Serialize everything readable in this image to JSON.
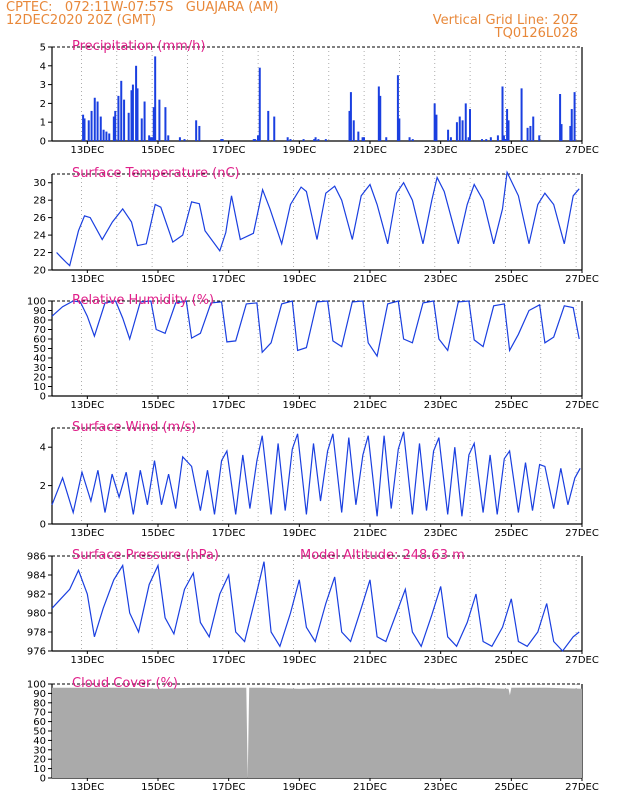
{
  "header": {
    "line1": "CPTEC:   072:11W-07:57S   GUAJARA (AM)",
    "line2_left": "12DEC2020 20Z (GMT)",
    "line2_right": "Vertical Grid Line: 20Z",
    "line3_right": "TQ0126L028"
  },
  "colors": {
    "header": "#e8883a",
    "title": "#e0208a",
    "line": "#1a3fe0",
    "cloud": "#aaaaaa",
    "grid": "#999999"
  },
  "x_tick_labels": [
    "13DEC",
    "15DEC",
    "17DEC",
    "19DEC",
    "21DEC",
    "23DEC",
    "25DEC",
    "27DEC"
  ],
  "chart_data": [
    {
      "type": "bar",
      "title": "Precipitation (mm/h)",
      "ylim": [
        0,
        5
      ],
      "yticks": [
        0,
        1,
        2,
        3,
        4,
        5
      ],
      "x": [
        12.88,
        12.92,
        13.04,
        13.12,
        13.21,
        13.29,
        13.38,
        13.46,
        13.54,
        13.62,
        13.75,
        13.79,
        13.88,
        13.96,
        14.04,
        14.17,
        14.25,
        14.29,
        14.38,
        14.42,
        14.54,
        14.62,
        14.75,
        14.79,
        14.83,
        14.88,
        14.92,
        15.04,
        15.21,
        15.29,
        15.62,
        15.75,
        16.08,
        16.17,
        16.79,
        16.83,
        17.71,
        17.75,
        17.83,
        17.88,
        18.12,
        18.29,
        18.67,
        18.75,
        19.12,
        19.42,
        19.46,
        19.54,
        19.75,
        20.42,
        20.46,
        20.54,
        20.67,
        20.79,
        20.83,
        21.25,
        21.29,
        21.46,
        21.79,
        21.83,
        22.12,
        22.21,
        22.83,
        22.88,
        23.21,
        23.29,
        23.46,
        23.54,
        23.62,
        23.71,
        23.79,
        23.83,
        24.17,
        24.29,
        24.42,
        24.62,
        24.75,
        24.79,
        24.83,
        24.88,
        24.92,
        25.29,
        25.46,
        25.54,
        25.62,
        25.79,
        26.38,
        26.42,
        26.67,
        26.71,
        26.79
      ],
      "values": [
        1.4,
        1.2,
        1.1,
        1.6,
        2.3,
        2.1,
        1.3,
        0.6,
        0.5,
        0.4,
        1.3,
        1.6,
        2.4,
        3.2,
        2.2,
        1.5,
        2.7,
        3.0,
        4.0,
        2.8,
        1.2,
        2.1,
        0.3,
        0.2,
        0.2,
        1.8,
        4.5,
        2.2,
        1.8,
        0.3,
        0.2,
        0.1,
        1.1,
        0.8,
        0.1,
        0.1,
        0.1,
        0.1,
        0.3,
        3.9,
        1.6,
        1.3,
        0.2,
        0.1,
        0.1,
        0.1,
        0.2,
        0.1,
        0.1,
        1.6,
        2.6,
        1.1,
        0.5,
        0.2,
        0.2,
        2.9,
        2.4,
        0.2,
        3.5,
        1.2,
        0.2,
        0.1,
        2.0,
        1.4,
        0.6,
        0.2,
        1.0,
        1.3,
        1.1,
        2.0,
        0.2,
        1.7,
        0.1,
        0.1,
        0.2,
        0.3,
        2.9,
        0.3,
        0.1,
        1.7,
        1.1,
        2.8,
        0.7,
        0.8,
        1.3,
        0.3,
        2.5,
        0.9,
        0.8,
        1.7,
        2.6
      ]
    },
    {
      "type": "line",
      "title": "Surface Temperature (nC)",
      "ylim": [
        20,
        31
      ],
      "yticks": [
        20,
        22,
        24,
        26,
        28,
        30
      ],
      "x": [
        12.13,
        12.25,
        12.42,
        12.5,
        12.75,
        12.92,
        13.08,
        13.42,
        13.71,
        14.0,
        14.25,
        14.42,
        14.67,
        14.92,
        15.08,
        15.42,
        15.7,
        15.95,
        16.17,
        16.33,
        16.75,
        16.92,
        17.08,
        17.33,
        17.7,
        17.96,
        18.17,
        18.5,
        18.75,
        19.05,
        19.2,
        19.5,
        19.75,
        20.0,
        20.2,
        20.5,
        20.75,
        21.0,
        21.2,
        21.5,
        21.75,
        21.95,
        22.2,
        22.5,
        22.75,
        22.9,
        23.1,
        23.5,
        23.75,
        23.95,
        24.2,
        24.5,
        24.75,
        24.88,
        25.2,
        25.5,
        25.75,
        25.95,
        26.2,
        26.5,
        26.75,
        26.92
      ],
      "y": [
        22.0,
        21.5,
        20.8,
        20.5,
        24.5,
        26.2,
        26.0,
        23.5,
        25.5,
        27.0,
        25.5,
        22.8,
        23.0,
        27.5,
        27.2,
        23.2,
        24.0,
        27.8,
        27.6,
        24.5,
        22.2,
        24.3,
        28.5,
        23.5,
        24.2,
        29.2,
        27.0,
        23.0,
        27.5,
        29.5,
        29.0,
        23.5,
        28.8,
        29.6,
        28.0,
        23.5,
        28.5,
        29.8,
        27.5,
        23.0,
        28.8,
        30.0,
        28.0,
        23.0,
        28.0,
        30.6,
        29.0,
        23.0,
        27.5,
        29.8,
        28.0,
        23.0,
        27.0,
        31.2,
        28.5,
        23.0,
        27.5,
        28.8,
        27.5,
        23.0,
        28.5,
        29.3
      ]
    },
    {
      "type": "line",
      "title": "Relative Humidity (%)",
      "ylim": [
        0,
        100
      ],
      "yticks": [
        0,
        10,
        20,
        30,
        40,
        50,
        60,
        70,
        80,
        90,
        100
      ],
      "x": [
        12.0,
        12.3,
        12.6,
        12.8,
        13.0,
        13.2,
        13.5,
        13.8,
        14.0,
        14.2,
        14.5,
        14.8,
        14.95,
        15.2,
        15.5,
        15.8,
        15.95,
        16.2,
        16.5,
        16.8,
        16.95,
        17.2,
        17.5,
        17.8,
        17.95,
        18.2,
        18.5,
        18.8,
        18.95,
        19.2,
        19.5,
        19.8,
        19.95,
        20.2,
        20.5,
        20.8,
        20.95,
        21.2,
        21.5,
        21.8,
        21.95,
        22.2,
        22.5,
        22.8,
        22.95,
        23.2,
        23.5,
        23.8,
        23.95,
        24.2,
        24.5,
        24.8,
        24.95,
        25.2,
        25.5,
        25.8,
        25.95,
        26.2,
        26.5,
        26.75,
        26.92
      ],
      "y": [
        84,
        94,
        100,
        99,
        84,
        63,
        98,
        100,
        82,
        60,
        99,
        100,
        70,
        66,
        98,
        100,
        61,
        66,
        98,
        99,
        57,
        58,
        97,
        98,
        46,
        56,
        97,
        100,
        48,
        51,
        99,
        100,
        58,
        52,
        99,
        100,
        56,
        42,
        97,
        100,
        60,
        56,
        98,
        100,
        60,
        48,
        99,
        100,
        59,
        52,
        95,
        97,
        48,
        65,
        90,
        96,
        56,
        62,
        95,
        93,
        60
      ]
    },
    {
      "type": "line",
      "title": "Surface Wind (m/s)",
      "ylim": [
        0,
        5
      ],
      "yticks": [
        0,
        2,
        4
      ],
      "x": [
        12.0,
        12.3,
        12.6,
        12.85,
        13.1,
        13.3,
        13.5,
        13.7,
        13.9,
        14.1,
        14.3,
        14.5,
        14.7,
        14.9,
        15.1,
        15.3,
        15.5,
        15.7,
        15.95,
        16.2,
        16.4,
        16.6,
        16.8,
        16.95,
        17.2,
        17.4,
        17.6,
        17.8,
        17.95,
        18.2,
        18.4,
        18.6,
        18.8,
        18.95,
        19.2,
        19.4,
        19.6,
        19.8,
        19.95,
        20.2,
        20.4,
        20.6,
        20.8,
        20.95,
        21.2,
        21.4,
        21.6,
        21.8,
        21.95,
        22.2,
        22.4,
        22.6,
        22.8,
        22.95,
        23.2,
        23.4,
        23.6,
        23.8,
        23.95,
        24.2,
        24.4,
        24.6,
        24.8,
        24.95,
        25.2,
        25.4,
        25.6,
        25.8,
        25.95,
        26.2,
        26.4,
        26.6,
        26.8,
        26.95
      ],
      "y": [
        1.0,
        2.4,
        0.6,
        2.7,
        1.2,
        2.8,
        0.6,
        2.6,
        1.4,
        2.7,
        0.5,
        2.8,
        1.0,
        3.3,
        1.0,
        2.6,
        0.8,
        3.5,
        3.0,
        0.7,
        2.8,
        0.5,
        3.3,
        3.8,
        0.5,
        3.6,
        0.8,
        3.3,
        4.6,
        0.5,
        4.2,
        0.7,
        3.9,
        4.7,
        0.5,
        4.2,
        1.2,
        3.8,
        4.7,
        0.6,
        4.5,
        1.0,
        3.6,
        4.6,
        0.4,
        4.6,
        0.8,
        3.9,
        4.8,
        0.5,
        4.2,
        0.7,
        3.8,
        4.5,
        0.5,
        4.0,
        0.4,
        3.6,
        4.2,
        0.6,
        3.6,
        0.5,
        3.4,
        3.8,
        0.6,
        3.2,
        0.7,
        3.1,
        3.0,
        0.8,
        2.9,
        1.0,
        2.4,
        2.9
      ]
    },
    {
      "type": "line",
      "title": "Surface Pressure (hPa)",
      "annotation": "Model Altitude: 248.63 m",
      "ylim": [
        976,
        986
      ],
      "yticks": [
        976,
        978,
        980,
        982,
        984,
        986
      ],
      "x": [
        12.0,
        12.25,
        12.5,
        12.75,
        13.0,
        13.2,
        13.45,
        13.75,
        14.0,
        14.2,
        14.45,
        14.75,
        15.0,
        15.2,
        15.45,
        15.75,
        16.0,
        16.2,
        16.45,
        16.75,
        17.0,
        17.2,
        17.45,
        17.75,
        18.0,
        18.2,
        18.45,
        18.75,
        19.0,
        19.2,
        19.45,
        19.75,
        20.0,
        20.2,
        20.45,
        20.75,
        21.0,
        21.2,
        21.45,
        21.75,
        22.0,
        22.2,
        22.45,
        22.75,
        23.0,
        23.2,
        23.45,
        23.75,
        24.0,
        24.2,
        24.45,
        24.75,
        25.0,
        25.2,
        25.45,
        25.75,
        26.0,
        26.2,
        26.45,
        26.75,
        26.92
      ],
      "y": [
        980.5,
        981.5,
        982.5,
        984.5,
        982.0,
        977.5,
        980.5,
        983.5,
        985.0,
        980.0,
        978.0,
        983.0,
        985.0,
        979.5,
        977.8,
        982.5,
        984.2,
        979.0,
        977.5,
        982.0,
        984.0,
        978.0,
        977.0,
        981.5,
        985.4,
        978.0,
        976.5,
        980.0,
        983.5,
        978.5,
        977.0,
        981.0,
        983.8,
        978.0,
        977.0,
        980.5,
        983.5,
        977.5,
        977.0,
        980.0,
        982.5,
        978.0,
        976.5,
        979.8,
        982.8,
        977.5,
        976.5,
        979.0,
        982.0,
        977.0,
        976.5,
        978.5,
        981.5,
        977.0,
        976.5,
        978.0,
        981.0,
        977.0,
        976.0,
        977.5,
        978.0
      ]
    },
    {
      "type": "area",
      "title": "Cloud Cover (%)",
      "ylim": [
        0,
        100
      ],
      "yticks": [
        0,
        10,
        20,
        30,
        40,
        50,
        60,
        70,
        80,
        90,
        100
      ],
      "x": [
        12.0,
        13.0,
        14.0,
        15.0,
        16.0,
        17.0,
        17.5,
        17.54,
        17.58,
        18.0,
        19.0,
        20.0,
        21.0,
        22.0,
        23.0,
        24.0,
        24.92,
        24.96,
        25.0,
        26.0,
        27.0
      ],
      "y": [
        96,
        96,
        96,
        95,
        96,
        96,
        96,
        0,
        96,
        96,
        95,
        96,
        96,
        96,
        95,
        96,
        95,
        88,
        96,
        96,
        95
      ]
    }
  ]
}
